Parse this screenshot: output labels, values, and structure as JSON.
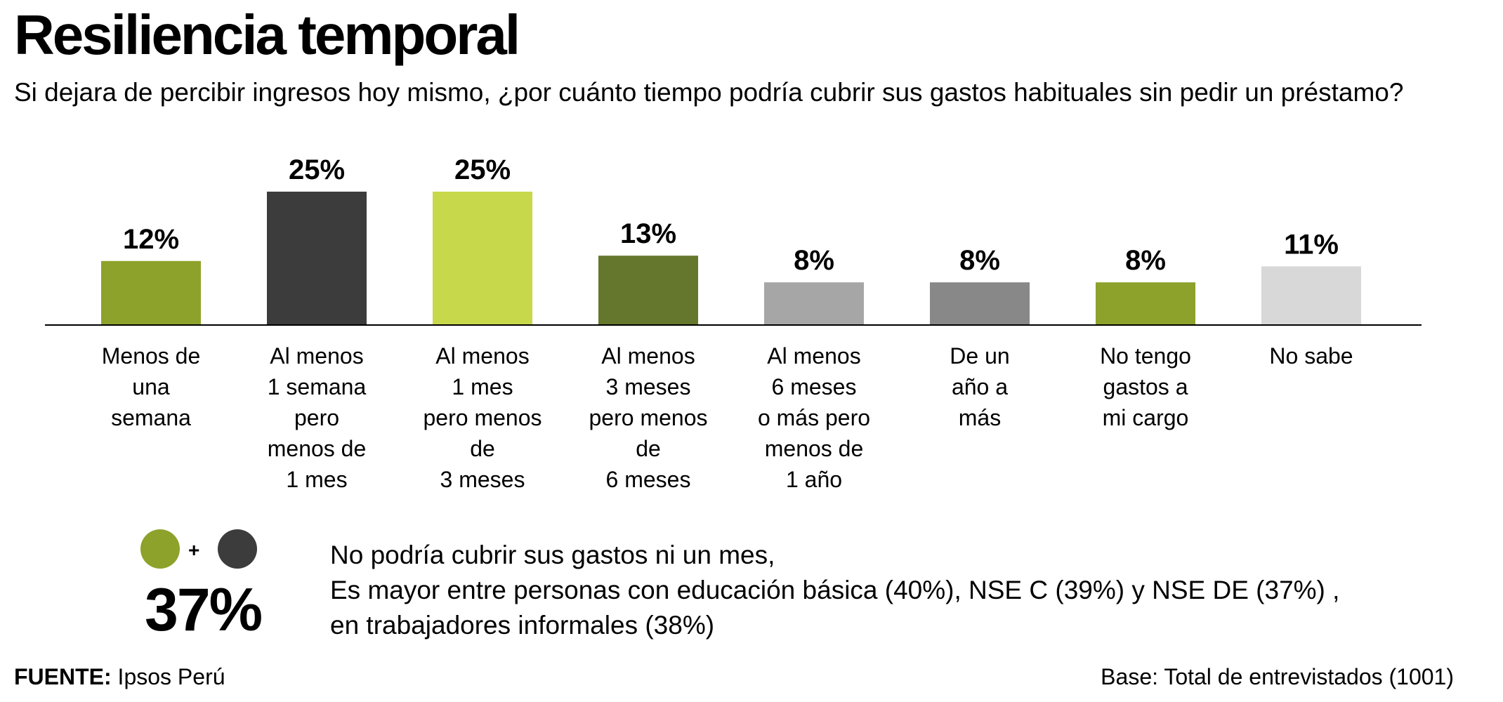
{
  "title": "Resiliencia temporal",
  "subtitle": "Si dejara de percibir ingresos hoy mismo, ¿por cuánto tiempo podría cubrir sus gastos habituales sin pedir un préstamo?",
  "chart_data": {
    "type": "bar",
    "categories": [
      "Menos de una semana",
      "Al menos 1 semana pero menos de 1 mes",
      "Al menos 1 mes pero menos de 3 meses",
      "Al menos 3 meses pero menos de 6 meses",
      "Al menos 6 meses o más pero menos de 1 año",
      "De un año a más",
      "No tengo gastos a mi cargo",
      "No sabe"
    ],
    "category_lines": [
      [
        "Menos de",
        "una",
        "semana"
      ],
      [
        "Al menos",
        "1 semana",
        "pero",
        "menos de",
        "1 mes"
      ],
      [
        "Al menos",
        "1 mes",
        "pero menos",
        "de",
        "3 meses"
      ],
      [
        "Al menos",
        "3 meses",
        "pero menos",
        "de",
        "6 meses"
      ],
      [
        "Al menos",
        "6 meses",
        "o más pero",
        "menos de",
        "1 año"
      ],
      [
        "De un",
        "año a",
        "más"
      ],
      [
        "No tengo",
        "gastos a",
        "mi cargo"
      ],
      [
        "No sabe"
      ]
    ],
    "values": [
      12,
      25,
      25,
      13,
      8,
      8,
      8,
      11
    ],
    "value_labels": [
      "12%",
      "25%",
      "25%",
      "13%",
      "8%",
      "8%",
      "8%",
      "11%"
    ],
    "colors": [
      "#8ca22b",
      "#3c3c3c",
      "#c8d84b",
      "#64772c",
      "#a6a6a6",
      "#888888",
      "#8ca22b",
      "#d8d8d8"
    ],
    "ylim": [
      0,
      25
    ],
    "legend": "none",
    "grid": false
  },
  "summary": {
    "dot_colors": [
      "#8ca22b",
      "#3c3c3c"
    ],
    "plus": "+",
    "value": "37%",
    "lines": [
      "No podría cubrir sus gastos ni un mes,",
      "Es mayor entre personas con educación básica (40%), NSE C (39%) y NSE DE (37%) ,",
      "en trabajadores informales (38%)"
    ]
  },
  "footer": {
    "source_label": "FUENTE:",
    "source_value": "Ipsos Perú",
    "base": "Base: Total de entrevistados (1001)"
  }
}
